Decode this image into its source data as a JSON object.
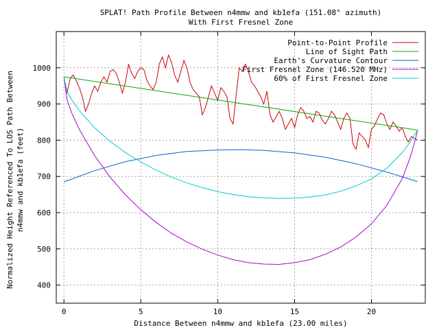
{
  "chart_data": {
    "type": "line",
    "title": "SPLAT! Path Profile Between n4mmw and kb1efa (151.08° azimuth)",
    "subtitle": "With First Fresnel Zone",
    "xlabel": "Distance Between n4mmw and kb1efa (23.00 miles)",
    "ylabel_line1": "Normalized Height Referenced To LOS Path Between",
    "ylabel_line2": "n4mmw and kb1efa (feet)",
    "xlim": [
      -0.5,
      23.5
    ],
    "ylim": [
      350,
      1100
    ],
    "xticks": [
      0,
      5,
      10,
      15,
      20
    ],
    "yticks": [
      400,
      500,
      600,
      700,
      800,
      900,
      1000
    ],
    "grid": true,
    "legend_position": "top-right",
    "series": [
      {
        "name": "Point-to-Point Profile",
        "color": "#cc0000",
        "x": [
          0,
          0.2,
          0.4,
          0.6,
          0.8,
          1.0,
          1.2,
          1.4,
          1.6,
          1.8,
          2.0,
          2.2,
          2.4,
          2.6,
          2.8,
          3.0,
          3.2,
          3.4,
          3.6,
          3.8,
          4.0,
          4.2,
          4.4,
          4.6,
          4.8,
          5.0,
          5.2,
          5.4,
          5.6,
          5.8,
          6.0,
          6.2,
          6.4,
          6.6,
          6.8,
          7.0,
          7.2,
          7.4,
          7.6,
          7.8,
          8.0,
          8.2,
          8.4,
          8.6,
          8.8,
          9.0,
          9.2,
          9.4,
          9.6,
          9.8,
          10.0,
          10.2,
          10.4,
          10.6,
          10.8,
          11.0,
          11.2,
          11.4,
          11.6,
          11.8,
          12.0,
          12.2,
          12.4,
          12.6,
          12.8,
          13.0,
          13.2,
          13.4,
          13.6,
          13.8,
          14.0,
          14.2,
          14.4,
          14.6,
          14.8,
          15.0,
          15.2,
          15.4,
          15.6,
          15.8,
          16.0,
          16.2,
          16.4,
          16.6,
          16.8,
          17.0,
          17.2,
          17.4,
          17.6,
          17.8,
          18.0,
          18.2,
          18.4,
          18.6,
          18.8,
          19.0,
          19.2,
          19.4,
          19.6,
          19.8,
          20.0,
          20.2,
          20.4,
          20.6,
          20.8,
          21.0,
          21.2,
          21.4,
          21.6,
          21.8,
          22.0,
          22.2,
          22.4,
          22.6,
          22.8,
          23.0
        ],
        "y": [
          975,
          930,
          970,
          980,
          965,
          945,
          920,
          880,
          900,
          930,
          950,
          935,
          960,
          975,
          960,
          990,
          995,
          985,
          960,
          930,
          960,
          1010,
          985,
          970,
          990,
          1000,
          995,
          965,
          950,
          940,
          960,
          1010,
          1030,
          1000,
          1035,
          1015,
          980,
          960,
          990,
          1020,
          1000,
          960,
          940,
          930,
          920,
          870,
          890,
          920,
          950,
          930,
          910,
          945,
          935,
          920,
          860,
          845,
          925,
          1000,
          990,
          1010,
          990,
          960,
          950,
          935,
          920,
          900,
          935,
          870,
          850,
          865,
          880,
          860,
          830,
          845,
          860,
          835,
          870,
          890,
          880,
          860,
          865,
          850,
          880,
          875,
          855,
          845,
          860,
          880,
          870,
          850,
          830,
          860,
          875,
          860,
          790,
          775,
          820,
          810,
          800,
          780,
          830,
          840,
          860,
          875,
          870,
          845,
          830,
          850,
          840,
          825,
          835,
          810,
          795,
          810,
          805,
          800
        ]
      },
      {
        "name": "Line of Sight Path",
        "color": "#00aa00",
        "x": [
          0,
          23
        ],
        "y": [
          975,
          828
        ]
      },
      {
        "name": "Earth's Curvature Contour",
        "color": "#0066cc",
        "x": [
          0,
          2,
          4,
          6,
          8,
          10,
          11.5,
          13,
          15,
          17,
          19,
          21,
          23
        ],
        "y": [
          685,
          716,
          741,
          758,
          769,
          773,
          774,
          772,
          765,
          753,
          735,
          712,
          686
        ]
      },
      {
        "name": "First Fresnel Zone (146.520 MHz)",
        "color": "#aa00cc",
        "x": [
          0,
          0.2,
          0.5,
          1,
          2,
          3,
          4,
          5,
          6,
          7,
          8,
          9,
          10,
          11,
          12,
          13,
          14,
          15,
          16,
          17,
          18,
          19,
          20,
          21,
          22,
          22.5,
          22.8,
          23
        ],
        "y": [
          975,
          912,
          876,
          830,
          757,
          698,
          649,
          608,
          573,
          543,
          519,
          499,
          483,
          470,
          462,
          458,
          457,
          462,
          470,
          485,
          505,
          533,
          569,
          620,
          694,
          750,
          793,
          828
        ]
      },
      {
        "name": "60% of First Fresnel Zone",
        "color": "#00cccc",
        "x": [
          0,
          0.2,
          0.5,
          1,
          2,
          3,
          4,
          5,
          6,
          7,
          8,
          9,
          10,
          11,
          12,
          13,
          14,
          15,
          16,
          17,
          18,
          19,
          20,
          21,
          22,
          22.5,
          22.8,
          23
        ],
        "y": [
          975,
          935,
          912,
          882,
          834,
          797,
          766,
          740,
          717,
          698,
          682,
          669,
          658,
          650,
          644,
          641,
          639,
          640,
          643,
          649,
          659,
          674,
          693,
          723,
          766,
          794,
          815,
          828
        ]
      }
    ]
  }
}
